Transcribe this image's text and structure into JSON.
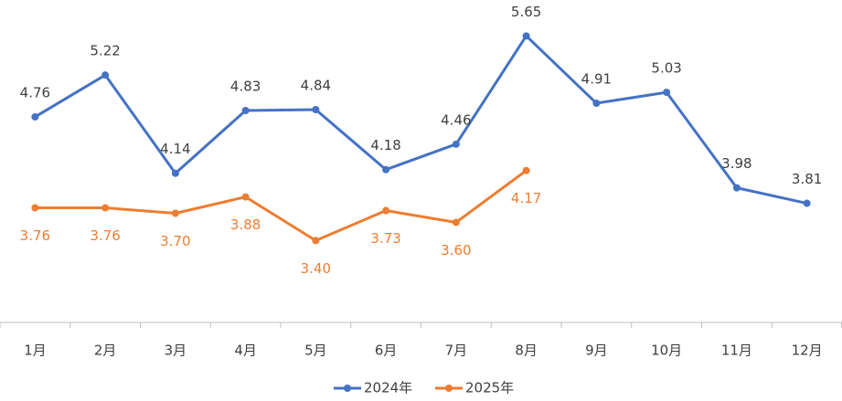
{
  "chart_data": {
    "type": "line",
    "categories": [
      "1月",
      "2月",
      "3月",
      "4月",
      "5月",
      "6月",
      "7月",
      "8月",
      "9月",
      "10月",
      "11月",
      "12月"
    ],
    "series": [
      {
        "name": "2024年",
        "color": "#4472c4",
        "values": [
          4.76,
          5.22,
          4.14,
          4.83,
          4.84,
          4.18,
          4.46,
          5.65,
          4.91,
          5.03,
          3.98,
          3.81
        ],
        "value_labels": [
          "4.76",
          "5.22",
          "4.14",
          "4.83",
          "4.84",
          "4.18",
          "4.46",
          "5.65",
          "4.91",
          "5.03",
          "3.98",
          "3.81"
        ]
      },
      {
        "name": "2025年",
        "color": "#ed7d31",
        "values": [
          3.76,
          3.76,
          3.7,
          3.88,
          3.4,
          3.73,
          3.6,
          4.17,
          null,
          null,
          null,
          null
        ],
        "value_labels": [
          "3.76",
          "3.76",
          "3.70",
          "3.88",
          "3.40",
          "3.73",
          "3.60",
          "4.17",
          null,
          null,
          null,
          null
        ]
      }
    ],
    "ylim": [
      2.5,
      6.0
    ],
    "legend": "bottom"
  }
}
